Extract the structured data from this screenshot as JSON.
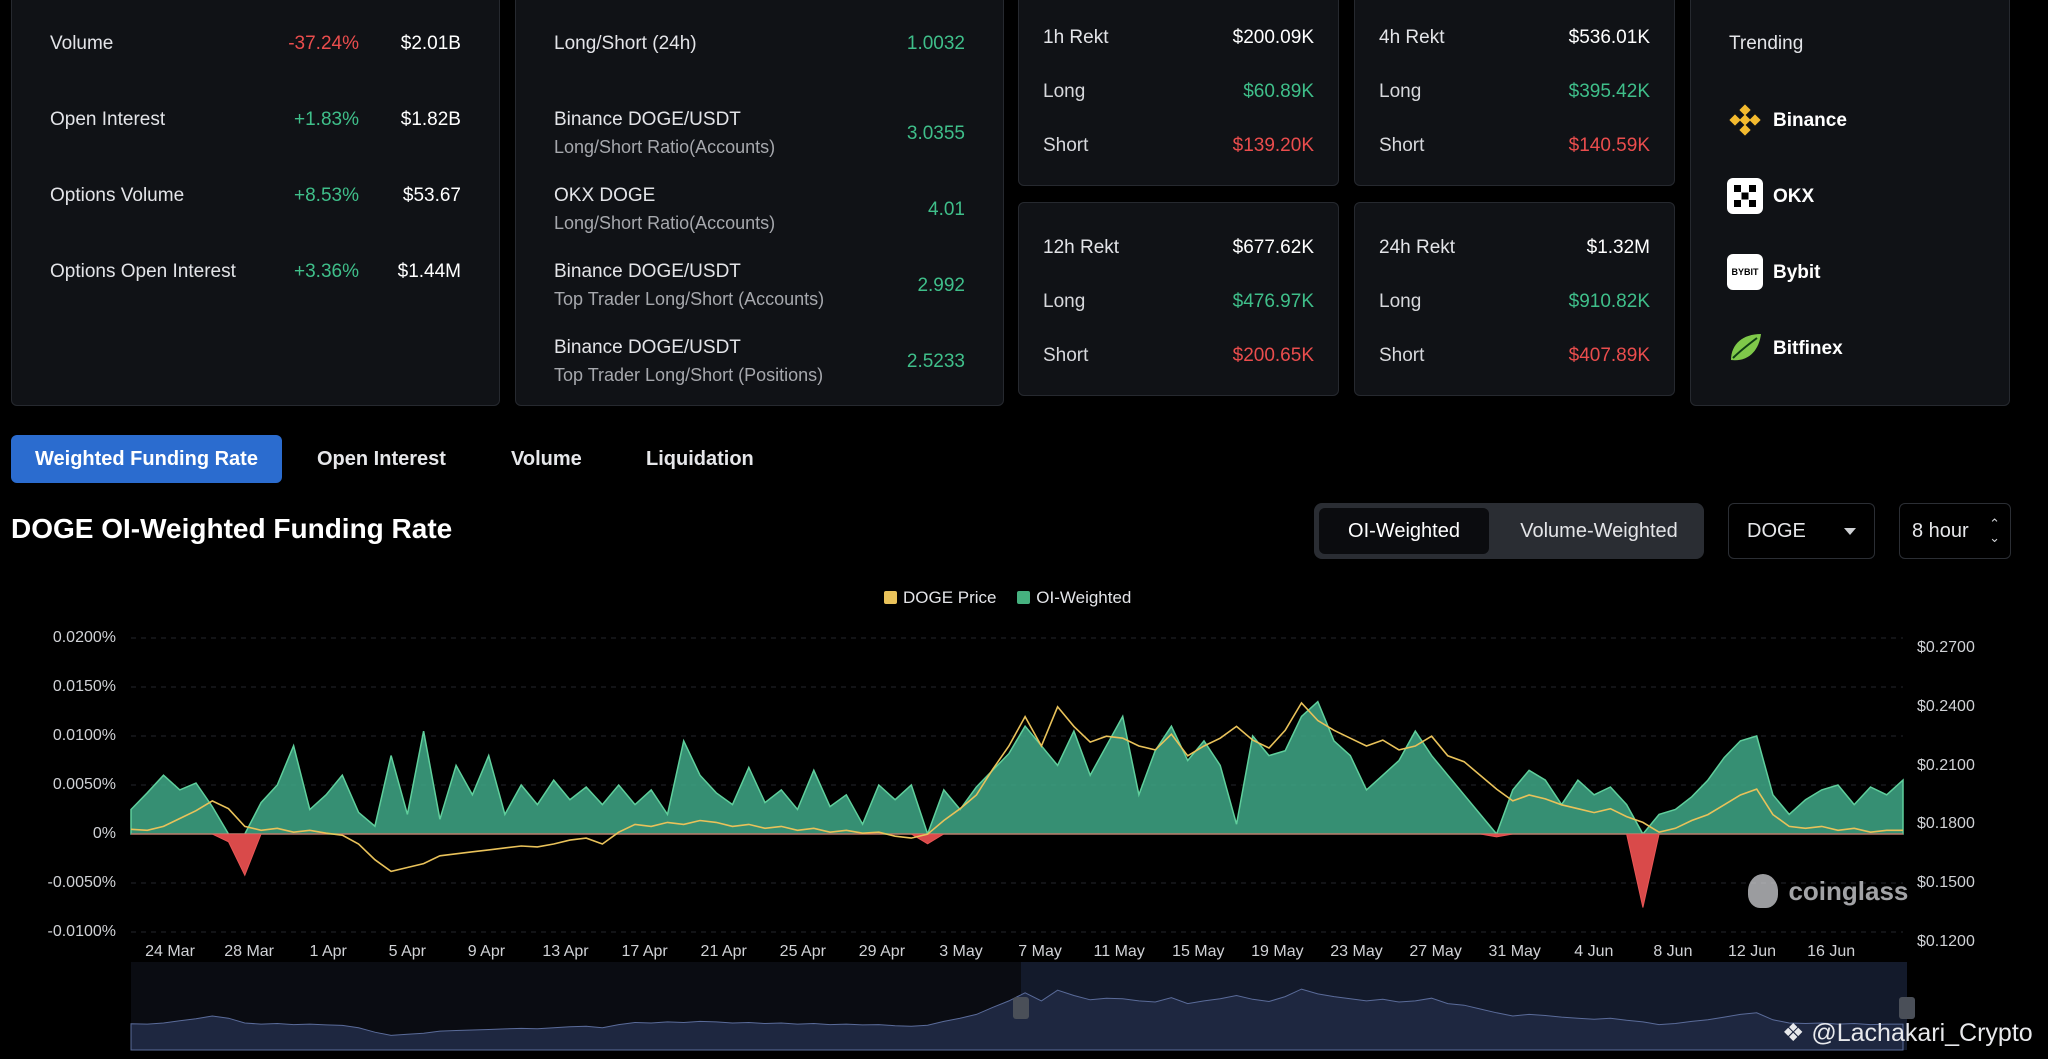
{
  "stats": [
    {
      "label": "Volume",
      "change": "-37.24%",
      "value": "$2.01B",
      "dir": "neg"
    },
    {
      "label": "Open Interest",
      "change": "+1.83%",
      "value": "$1.82B",
      "dir": "pos"
    },
    {
      "label": "Options Volume",
      "change": "+8.53%",
      "value": "$53.67",
      "dir": "pos"
    },
    {
      "label": "Options Open Interest",
      "change": "+3.36%",
      "value": "$1.44M",
      "dir": "pos"
    }
  ],
  "ratios": [
    {
      "label": "Long/Short (24h)",
      "sub": "",
      "value": "1.0032"
    },
    {
      "label": "Binance DOGE/USDT",
      "sub": "Long/Short Ratio(Accounts)",
      "value": "3.0355"
    },
    {
      "label": "OKX DOGE",
      "sub": "Long/Short Ratio(Accounts)",
      "value": "4.01"
    },
    {
      "label": "Binance DOGE/USDT",
      "sub": "Top Trader Long/Short (Accounts)",
      "value": "2.992"
    },
    {
      "label": "Binance DOGE/USDT",
      "sub": "Top Trader Long/Short (Positions)",
      "value": "2.5233"
    }
  ],
  "rekt": [
    {
      "label": "1h Rekt",
      "total": "$200.09K",
      "long_label": "Long",
      "long": "$60.89K",
      "short_label": "Short",
      "short": "$139.20K"
    },
    {
      "label": "4h Rekt",
      "total": "$536.01K",
      "long_label": "Long",
      "long": "$395.42K",
      "short_label": "Short",
      "short": "$140.59K"
    },
    {
      "label": "12h Rekt",
      "total": "$677.62K",
      "long_label": "Long",
      "long": "$476.97K",
      "short_label": "Short",
      "short": "$200.65K"
    },
    {
      "label": "24h Rekt",
      "total": "$1.32M",
      "long_label": "Long",
      "long": "$910.82K",
      "short_label": "Short",
      "short": "$407.89K"
    }
  ],
  "trending": {
    "title": "Trending",
    "items": [
      {
        "name": "Binance",
        "icon": "binance-logo-icon",
        "color": "#f3ba2f"
      },
      {
        "name": "OKX",
        "icon": "okx-logo-icon",
        "color": "#ffffff"
      },
      {
        "name": "Bybit",
        "icon": "bybit-logo-icon",
        "color": "#ffffff"
      },
      {
        "name": "Bitfinex",
        "icon": "bitfinex-logo-icon",
        "color": "#7fc94a"
      }
    ]
  },
  "tabs": [
    "Weighted Funding Rate",
    "Open Interest",
    "Volume",
    "Liquidation"
  ],
  "chart_title": "DOGE OI-Weighted Funding Rate",
  "segment": {
    "options": [
      "OI-Weighted",
      "Volume-Weighted"
    ],
    "selected": "OI-Weighted"
  },
  "coin_select": {
    "value": "DOGE"
  },
  "interval_select": {
    "value": "8 hour"
  },
  "watermark": "coinglass",
  "credit": "@Lachakari_Crypto",
  "colors": {
    "accent": "#2b6ccf",
    "positive": "#3fbf8a",
    "negative": "#ea4d4d",
    "price": "#e9c25a"
  },
  "chart_data": {
    "type": "area",
    "title": "DOGE OI-Weighted Funding Rate",
    "legend": [
      "DOGE Price",
      "OI-Weighted"
    ],
    "legend_position": "top-center",
    "x_ticks": [
      "24 Mar",
      "28 Mar",
      "1 Apr",
      "5 Apr",
      "9 Apr",
      "13 Apr",
      "17 Apr",
      "21 Apr",
      "25 Apr",
      "29 Apr",
      "3 May",
      "7 May",
      "11 May",
      "15 May",
      "19 May",
      "23 May",
      "27 May",
      "31 May",
      "4 Jun",
      "8 Jun",
      "12 Jun",
      "16 Jun"
    ],
    "y_left_ticks": [
      "0.0200%",
      "0.0150%",
      "0.0100%",
      "0.0050%",
      "0%",
      "-0.0050%",
      "-0.0100%"
    ],
    "y_left_range": [
      -0.01,
      0.02
    ],
    "y_right_ticks": [
      "$0.2700",
      "$0.2400",
      "$0.2100",
      "$0.1800",
      "$0.1500",
      "$0.1200"
    ],
    "y_right_range": [
      0.12,
      0.27
    ],
    "grid": true,
    "series": [
      {
        "name": "OI-Weighted",
        "color": "#3fa887",
        "values": [
          0.0025,
          0.0042,
          0.006,
          0.0045,
          0.0052,
          0.0028,
          -0.0008,
          -0.0042,
          0.0032,
          0.005,
          0.009,
          0.0025,
          0.004,
          0.006,
          0.0022,
          0.0008,
          0.008,
          0.002,
          0.0105,
          0.0015,
          0.007,
          0.004,
          0.008,
          0.002,
          0.005,
          0.003,
          0.0055,
          0.0035,
          0.0048,
          0.003,
          0.005,
          0.003,
          0.0045,
          0.002,
          0.0095,
          0.006,
          0.0042,
          0.003,
          0.0068,
          0.0032,
          0.0045,
          0.0025,
          0.0065,
          0.0028,
          0.004,
          0.001,
          0.005,
          0.0035,
          0.005,
          -0.001,
          0.0045,
          0.0025,
          0.0048,
          0.0065,
          0.0082,
          0.011,
          0.009,
          0.007,
          0.0105,
          0.006,
          0.009,
          0.012,
          0.004,
          0.0085,
          0.011,
          0.0075,
          0.0095,
          0.007,
          0.001,
          0.01,
          0.008,
          0.0085,
          0.012,
          0.0135,
          0.0095,
          0.008,
          0.0045,
          0.006,
          0.0075,
          0.0105,
          0.008,
          0.006,
          0.004,
          0.002,
          -0.0003,
          0.0045,
          0.0065,
          0.0055,
          0.003,
          0.0055,
          0.004,
          0.0048,
          0.003,
          -0.0075,
          0.002,
          0.0025,
          0.0038,
          0.0055,
          0.0078,
          0.0095,
          0.01,
          0.004,
          0.002,
          0.0035,
          0.0045,
          0.005,
          0.003,
          0.0048,
          0.004,
          0.0055
        ]
      },
      {
        "name": "DOGE Price",
        "color": "#e9c25a",
        "values": [
          0.1775,
          0.177,
          0.179,
          0.183,
          0.187,
          0.192,
          0.188,
          0.179,
          0.177,
          0.178,
          0.176,
          0.177,
          0.1755,
          0.1745,
          0.17,
          0.162,
          0.156,
          0.158,
          0.16,
          0.164,
          0.165,
          0.166,
          0.167,
          0.168,
          0.169,
          0.1685,
          0.17,
          0.172,
          0.173,
          0.17,
          0.176,
          0.18,
          0.179,
          0.181,
          0.18,
          0.182,
          0.181,
          0.179,
          0.18,
          0.178,
          0.179,
          0.177,
          0.178,
          0.176,
          0.177,
          0.1755,
          0.176,
          0.174,
          0.173,
          0.175,
          0.182,
          0.188,
          0.195,
          0.208,
          0.22,
          0.235,
          0.22,
          0.24,
          0.23,
          0.222,
          0.225,
          0.224,
          0.22,
          0.218,
          0.226,
          0.215,
          0.22,
          0.224,
          0.23,
          0.223,
          0.219,
          0.228,
          0.242,
          0.233,
          0.228,
          0.224,
          0.22,
          0.223,
          0.218,
          0.22,
          0.225,
          0.215,
          0.212,
          0.205,
          0.198,
          0.192,
          0.195,
          0.193,
          0.19,
          0.188,
          0.186,
          0.188,
          0.184,
          0.181,
          0.176,
          0.178,
          0.182,
          0.185,
          0.19,
          0.195,
          0.198,
          0.185,
          0.179,
          0.178,
          0.179,
          0.177,
          0.178,
          0.176,
          0.177,
          0.177
        ]
      }
    ]
  }
}
